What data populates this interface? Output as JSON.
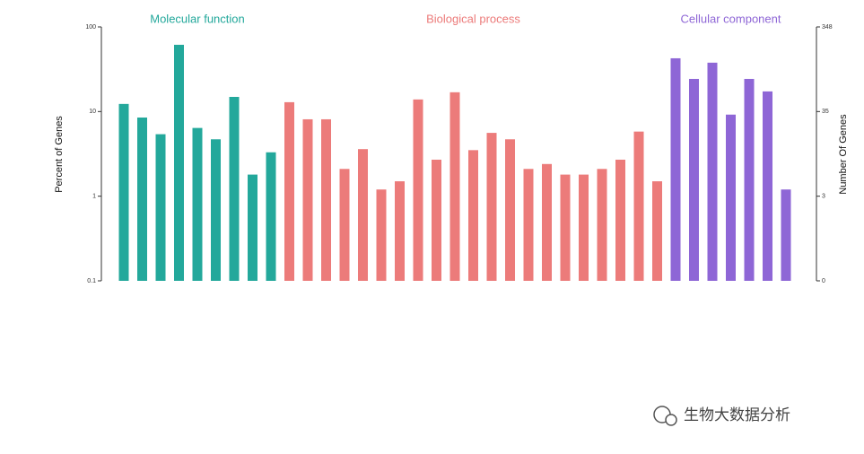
{
  "chart_data": {
    "type": "bar",
    "ylabel": "Percent of Genes",
    "y2label": "Number Of Genes",
    "ylim": [
      0.1,
      100
    ],
    "yticks": [
      0.1,
      1,
      10,
      100
    ],
    "log": true,
    "y2ticks": [
      0,
      3,
      35,
      348
    ],
    "series": [
      {
        "name": "Molecular function",
        "color": "#23a89b",
        "values": [
          12.3,
          8.5,
          5.4,
          61.5,
          6.4,
          4.7,
          14.9,
          1.8,
          3.3
        ]
      },
      {
        "name": "Biological process",
        "color": "#ec7b7a",
        "values": [
          12.9,
          8.1,
          8.1,
          2.1,
          3.6,
          1.2,
          1.5,
          13.9,
          2.7,
          16.9,
          3.5,
          5.6,
          4.7,
          2.1,
          2.4,
          1.8,
          1.8,
          2.1,
          2.7,
          5.8,
          1.5
        ]
      },
      {
        "name": "Cellular component",
        "color": "#8e66d6",
        "values": [
          42.6,
          24.3,
          37.8,
          9.2,
          24.3,
          17.3,
          1.2
        ]
      }
    ]
  },
  "watermark": "生物大数据分析"
}
